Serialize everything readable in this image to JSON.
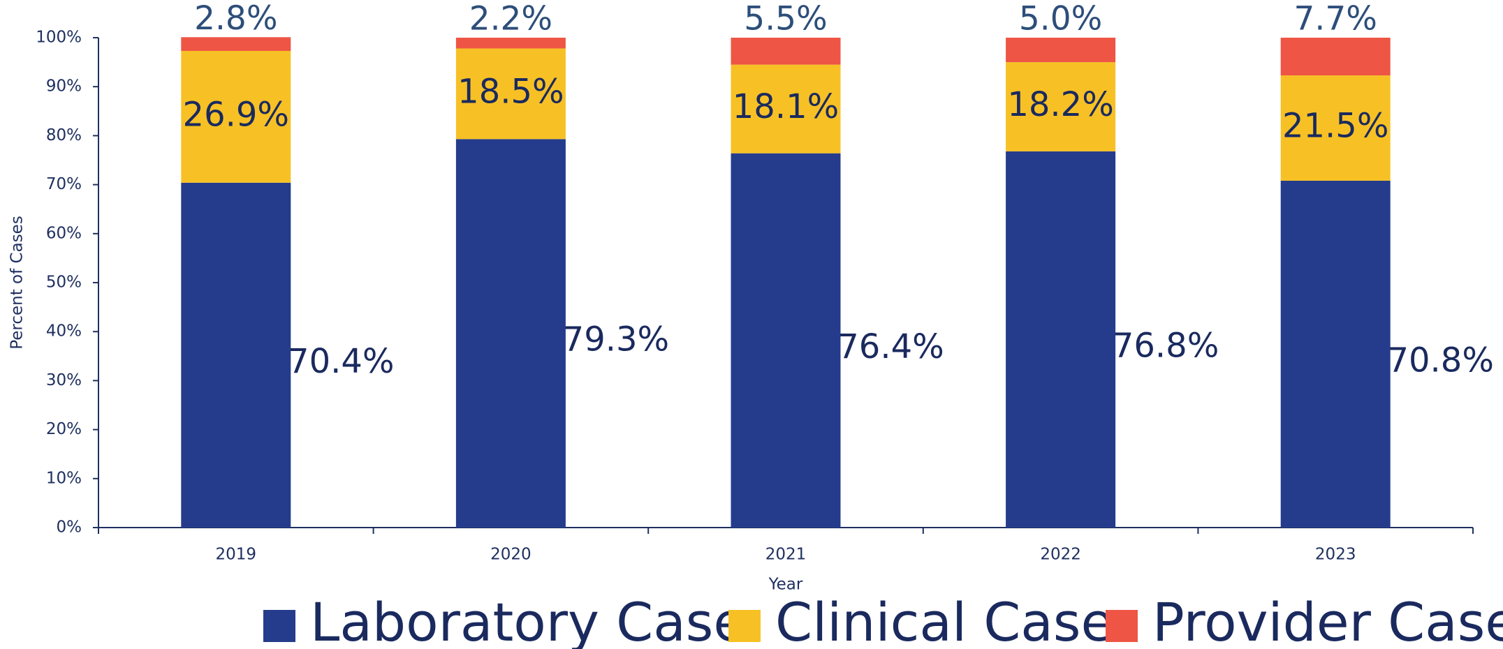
{
  "chart_data": {
    "type": "stacked_bar",
    "xlabel": "Year",
    "ylabel": "Percent of Cases",
    "categories": [
      "2019",
      "2020",
      "2021",
      "2022",
      "2023"
    ],
    "series": [
      {
        "name": "Laboratory Case",
        "color": "#253c8c",
        "values": [
          70.4,
          79.3,
          76.4,
          76.8,
          70.8
        ],
        "value_labels": [
          "70.4%",
          "79.3%",
          "76.4%",
          "76.8%",
          "70.8%"
        ]
      },
      {
        "name": "Clinical Case",
        "color": "#f7c125",
        "values": [
          26.9,
          18.5,
          18.1,
          18.2,
          21.5
        ],
        "value_labels": [
          "26.9%",
          "18.5%",
          "18.1%",
          "18.2%",
          "21.5%"
        ]
      },
      {
        "name": "Provider Case",
        "color": "#ee5544",
        "values": [
          2.8,
          2.2,
          5.5,
          5.0,
          7.7
        ],
        "value_labels": [
          "2.8%",
          "2.2%",
          "5.5%",
          "5.0%",
          "7.7%"
        ]
      }
    ],
    "ylim": [
      0,
      100
    ],
    "yticks": [
      {
        "value": 0,
        "label": "0%"
      },
      {
        "value": 10,
        "label": "10%"
      },
      {
        "value": 20,
        "label": "20%"
      },
      {
        "value": 30,
        "label": "30%"
      },
      {
        "value": 40,
        "label": "40%"
      },
      {
        "value": 50,
        "label": "50%"
      },
      {
        "value": 60,
        "label": "60%"
      },
      {
        "value": 70,
        "label": "70%"
      },
      {
        "value": 80,
        "label": "80%"
      },
      {
        "value": 90,
        "label": "90%"
      },
      {
        "value": 100,
        "label": "100%"
      }
    ],
    "legend": "bottom"
  }
}
